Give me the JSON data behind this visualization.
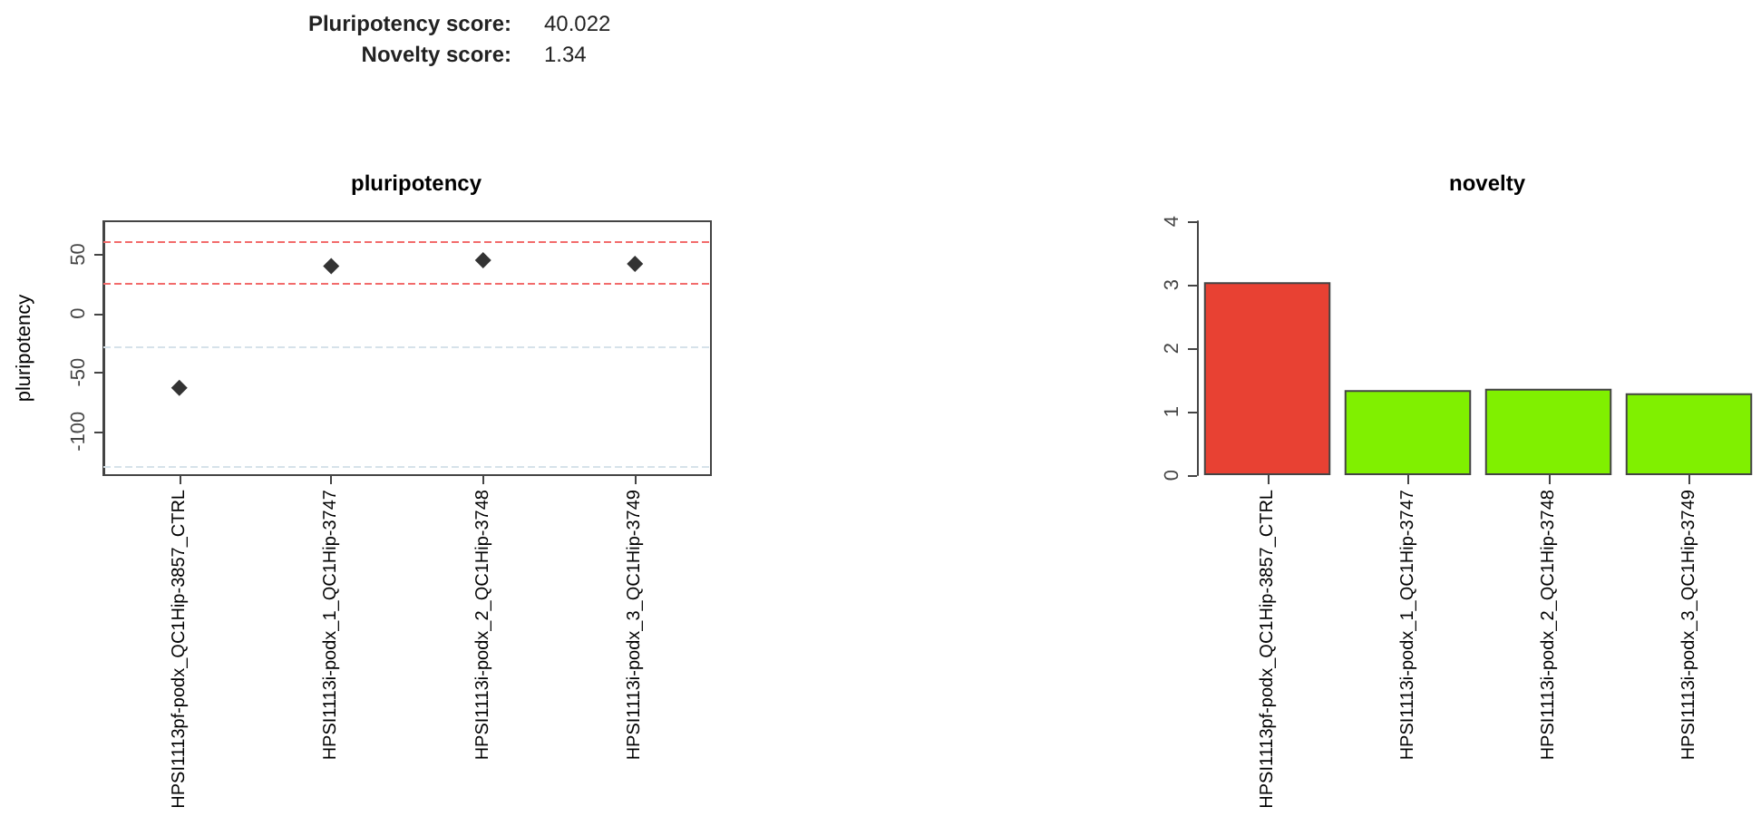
{
  "chart_data": [
    {
      "type": "other",
      "annotations": [
        "Pluripotency score:",
        "40.022",
        "Novelty score:",
        "1.34"
      ]
    },
    {
      "type": "scatter",
      "title": "pluripotency",
      "ylabel": "pluripotency",
      "categories": [
        "HPSI1113pf-podx_QC1Hip-3857_CTRL",
        "HPSI1113i-podx_1_QC1Hip-3747",
        "HPSI1113i-podx_2_QC1Hip-3748",
        "HPSI1113i-podx_3_QC1Hip-3749"
      ],
      "values": [
        -63,
        40,
        45,
        42
      ],
      "color": "#000000",
      "marker": "diamond",
      "ylim": [
        -137,
        78
      ],
      "yticks": [
        -100,
        -50,
        0,
        50
      ],
      "ref_lines": [
        {
          "axis": "y",
          "value": 60,
          "color": "#f26b6b",
          "line_style": "dashed"
        },
        {
          "axis": "y",
          "value": 25,
          "color": "#f26b6b",
          "line_style": "dashed"
        },
        {
          "axis": "y",
          "value": -28,
          "color": "#d6e2ea",
          "line_style": "dashed"
        },
        {
          "axis": "y",
          "value": -129,
          "color": "#d6e2ea",
          "line_style": "dashed"
        }
      ]
    },
    {
      "type": "bar",
      "title": "novelty",
      "categories": [
        "HPSI1113pf-podx_QC1Hip-3857_CTRL",
        "HPSI1113i-podx_1_QC1Hip-3747",
        "HPSI1113i-podx_2_QC1Hip-3748",
        "HPSI1113i-podx_3_QC1Hip-3749"
      ],
      "values": [
        3.04,
        1.34,
        1.36,
        1.29
      ],
      "colors": [
        "#e84133",
        "#80f000",
        "#80f000",
        "#80f000"
      ],
      "ylim": [
        0,
        4
      ],
      "yticks": [
        0,
        1,
        2,
        3,
        4
      ]
    }
  ]
}
